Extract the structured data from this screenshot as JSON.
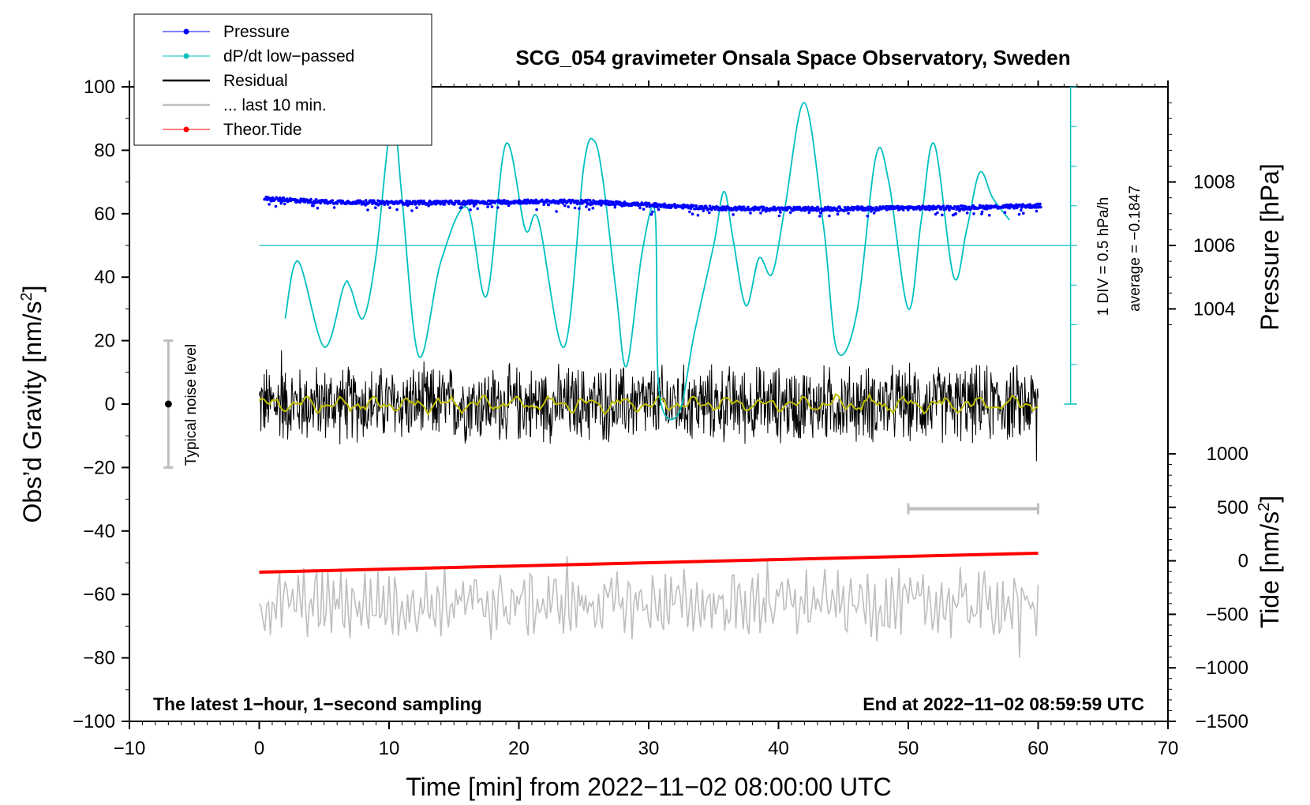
{
  "chart_data": {
    "type": "line",
    "title": "SCG_054 gravimeter Onsala Space Observatory, Sweden",
    "xlabel": "Time [min] from 2022−11−02 08:00:00 UTC",
    "ylabel": "Obs’d Gravity [nm/s²]",
    "ylabel_main": "Obs’d Gravity [nm/s",
    "ylabel_sup": "2",
    "ylabel_close": "]",
    "xlim": [
      -10,
      70
    ],
    "ylim": [
      -100,
      100
    ],
    "x_ticks": [
      -10,
      0,
      10,
      20,
      30,
      40,
      50,
      60,
      70
    ],
    "x_tick_labels": [
      "−10",
      "0",
      "10",
      "20",
      "30",
      "40",
      "50",
      "60",
      "70"
    ],
    "y_ticks": [
      -100,
      -80,
      -60,
      -40,
      -20,
      0,
      20,
      40,
      60,
      80,
      100
    ],
    "y_tick_labels": [
      "−100",
      "−80",
      "−60",
      "−40",
      "−20",
      "0",
      "20",
      "40",
      "60",
      "80",
      "100"
    ],
    "pressure_axis": {
      "label": "Pressure [hPa]",
      "ticks": [
        1004,
        1006,
        1008
      ],
      "tick_labels": [
        "1004",
        "1006",
        "1008"
      ],
      "gravity_equivalent": [
        30,
        50,
        70
      ]
    },
    "tide_axis": {
      "label_main": "Tide [nm/s",
      "label_sup": "2",
      "label_close": "]",
      "ticks": [
        -1500,
        -1000,
        -500,
        0,
        500,
        1000
      ],
      "tick_labels": [
        "−1500",
        "−1000",
        "−500",
        "0",
        "500",
        "1000"
      ],
      "range": [
        -1500,
        1000
      ]
    },
    "legend": [
      {
        "label": "Pressure",
        "color": "#0000ff",
        "marker": true
      },
      {
        "label": "dP/dt low−passed",
        "color": "#00c0c0",
        "marker": true
      },
      {
        "label": "Residual",
        "color": "#000000",
        "marker": false
      },
      {
        "label": "... last 10 min.",
        "color": "#bebebe",
        "marker": false
      },
      {
        "label": "Theor.Tide",
        "color": "#ff0000",
        "marker": true
      }
    ],
    "series": [
      {
        "name": "Pressure",
        "color": "#0000ff",
        "x": [
          0,
          5,
          10,
          15,
          20,
          25,
          30,
          35,
          40,
          45,
          50,
          55,
          60
        ],
        "y": [
          64.8,
          63.8,
          63.5,
          63.5,
          63.8,
          63.8,
          62.8,
          61.8,
          61.5,
          61.6,
          61.8,
          62.0,
          62.5
        ]
      },
      {
        "name": "dP/dt low−passed",
        "color": "#00c0c0",
        "x": [
          2,
          3,
          5,
          6.5,
          7,
          8,
          9,
          10,
          10.5,
          11,
          12.3,
          14,
          16,
          17.5,
          19,
          20.5,
          21.5,
          23.5,
          25,
          25.8,
          26.5,
          27.5,
          28.3,
          29.5,
          30.5,
          30.8,
          32.3,
          33.5,
          35,
          35.8,
          36.5,
          37.5,
          38.5,
          39.5,
          40.5,
          42,
          43.5,
          44.5,
          46,
          47.5,
          48.5,
          50,
          51,
          52,
          53.5,
          54.5,
          55.5,
          56.5,
          57.8
        ],
        "y": [
          27,
          45,
          18,
          37,
          37,
          27,
          47,
          85,
          87,
          65,
          15,
          45,
          62,
          34,
          82,
          55,
          58,
          18,
          75,
          83,
          70,
          35,
          12,
          48,
          60,
          4,
          -3,
          22,
          50,
          67,
          52,
          31,
          46,
          41,
          62,
          95,
          55,
          17,
          28,
          78,
          70,
          30,
          58,
          82,
          40,
          55,
          73,
          65,
          58
        ]
      },
      {
        "name": "Residual",
        "color": "#000000",
        "x_range": [
          0,
          60
        ],
        "typical_amplitude": 10,
        "min": -18,
        "max": 17
      },
      {
        "name": "Residual (smoothed)",
        "color": "#bebe00",
        "x_range": [
          0,
          60
        ],
        "typical_amplitude": 2.5
      },
      {
        "name": "... last 10 min.",
        "color": "#bebebe",
        "x_range": [
          0,
          60
        ],
        "center": -63,
        "min": -80,
        "max": -48
      },
      {
        "name": "Theor.Tide",
        "color": "#ff0000",
        "x": [
          0,
          60
        ],
        "y": [
          -53,
          -47
        ]
      }
    ],
    "pressure_average_line": 50,
    "scale_bar_label": "1 DIV = 0.5 hPa/h",
    "average_label": "average = −0.1847",
    "noise_label": "Typical noise level",
    "noise_range": [
      -20,
      20
    ],
    "noise_x": -7,
    "last10_range": [
      50,
      60
    ],
    "last10_y": -33,
    "bottom_left_note": "The latest 1−hour, 1−second sampling",
    "bottom_right_note": "End at 2022−11−02 08:59:59 UTC"
  }
}
